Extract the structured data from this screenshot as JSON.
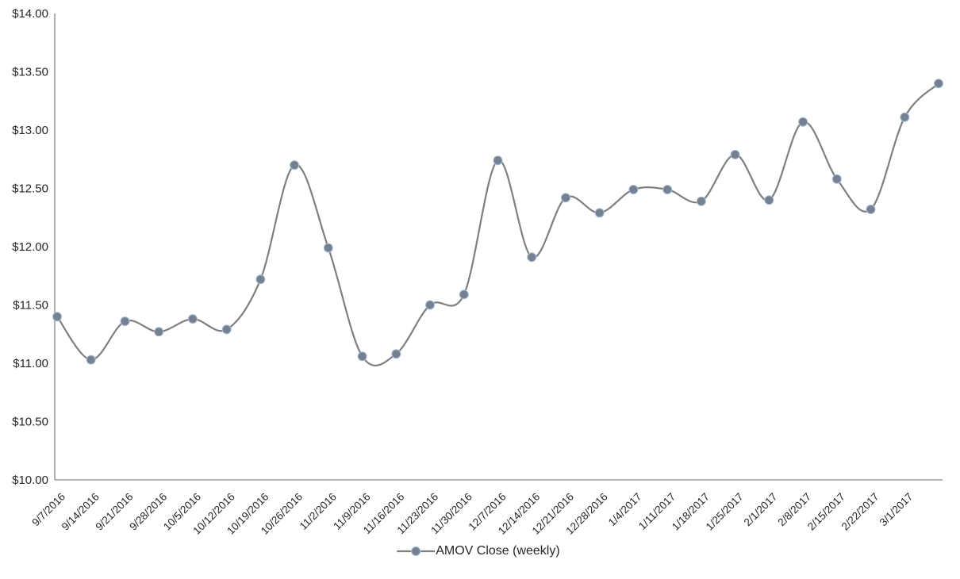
{
  "page": {
    "background": "#ffffff"
  },
  "legend": {
    "label": "AMOV Close (weekly)"
  },
  "chart_data": {
    "type": "line",
    "title": "",
    "xlabel": "",
    "ylabel": "",
    "smooth": true,
    "grid": false,
    "legend_position": "bottom",
    "ylim": [
      10,
      14
    ],
    "y_tick_step": 0.5,
    "y_ticks": [
      "$14.00",
      "$13.50",
      "$13.00",
      "$12.50",
      "$12.00",
      "$11.50",
      "$11.00",
      "$10.50",
      "$10.00"
    ],
    "categories": [
      "9/7/2016",
      "9/14/2016",
      "9/21/2016",
      "9/28/2016",
      "10/5/2016",
      "10/12/2016",
      "10/19/2016",
      "10/26/2016",
      "11/2/2016",
      "11/9/2016",
      "11/16/2016",
      "11/23/2016",
      "11/30/2016",
      "12/7/2016",
      "12/14/2016",
      "12/21/2016",
      "12/28/2016",
      "1/4/2017",
      "1/11/2017",
      "1/18/2017",
      "1/25/2017",
      "2/1/2017",
      "2/8/2017",
      "2/15/2017",
      "2/22/2017",
      "3/1/2017",
      ""
    ],
    "series": [
      {
        "name": "AMOV Close (weekly)",
        "values": [
          11.4,
          11.03,
          11.36,
          11.27,
          11.38,
          11.29,
          11.72,
          12.7,
          11.99,
          11.06,
          11.08,
          11.5,
          11.59,
          12.74,
          11.91,
          12.42,
          12.29,
          12.49,
          12.49,
          12.39,
          12.79,
          12.4,
          13.07,
          12.58,
          12.32,
          13.11,
          13.4
        ]
      }
    ],
    "colors": {
      "line": "#7F7F7F",
      "marker_fill": "#76808E",
      "marker_stroke": "#A3BEDC",
      "axis": "#848484",
      "text": "#262626"
    }
  }
}
